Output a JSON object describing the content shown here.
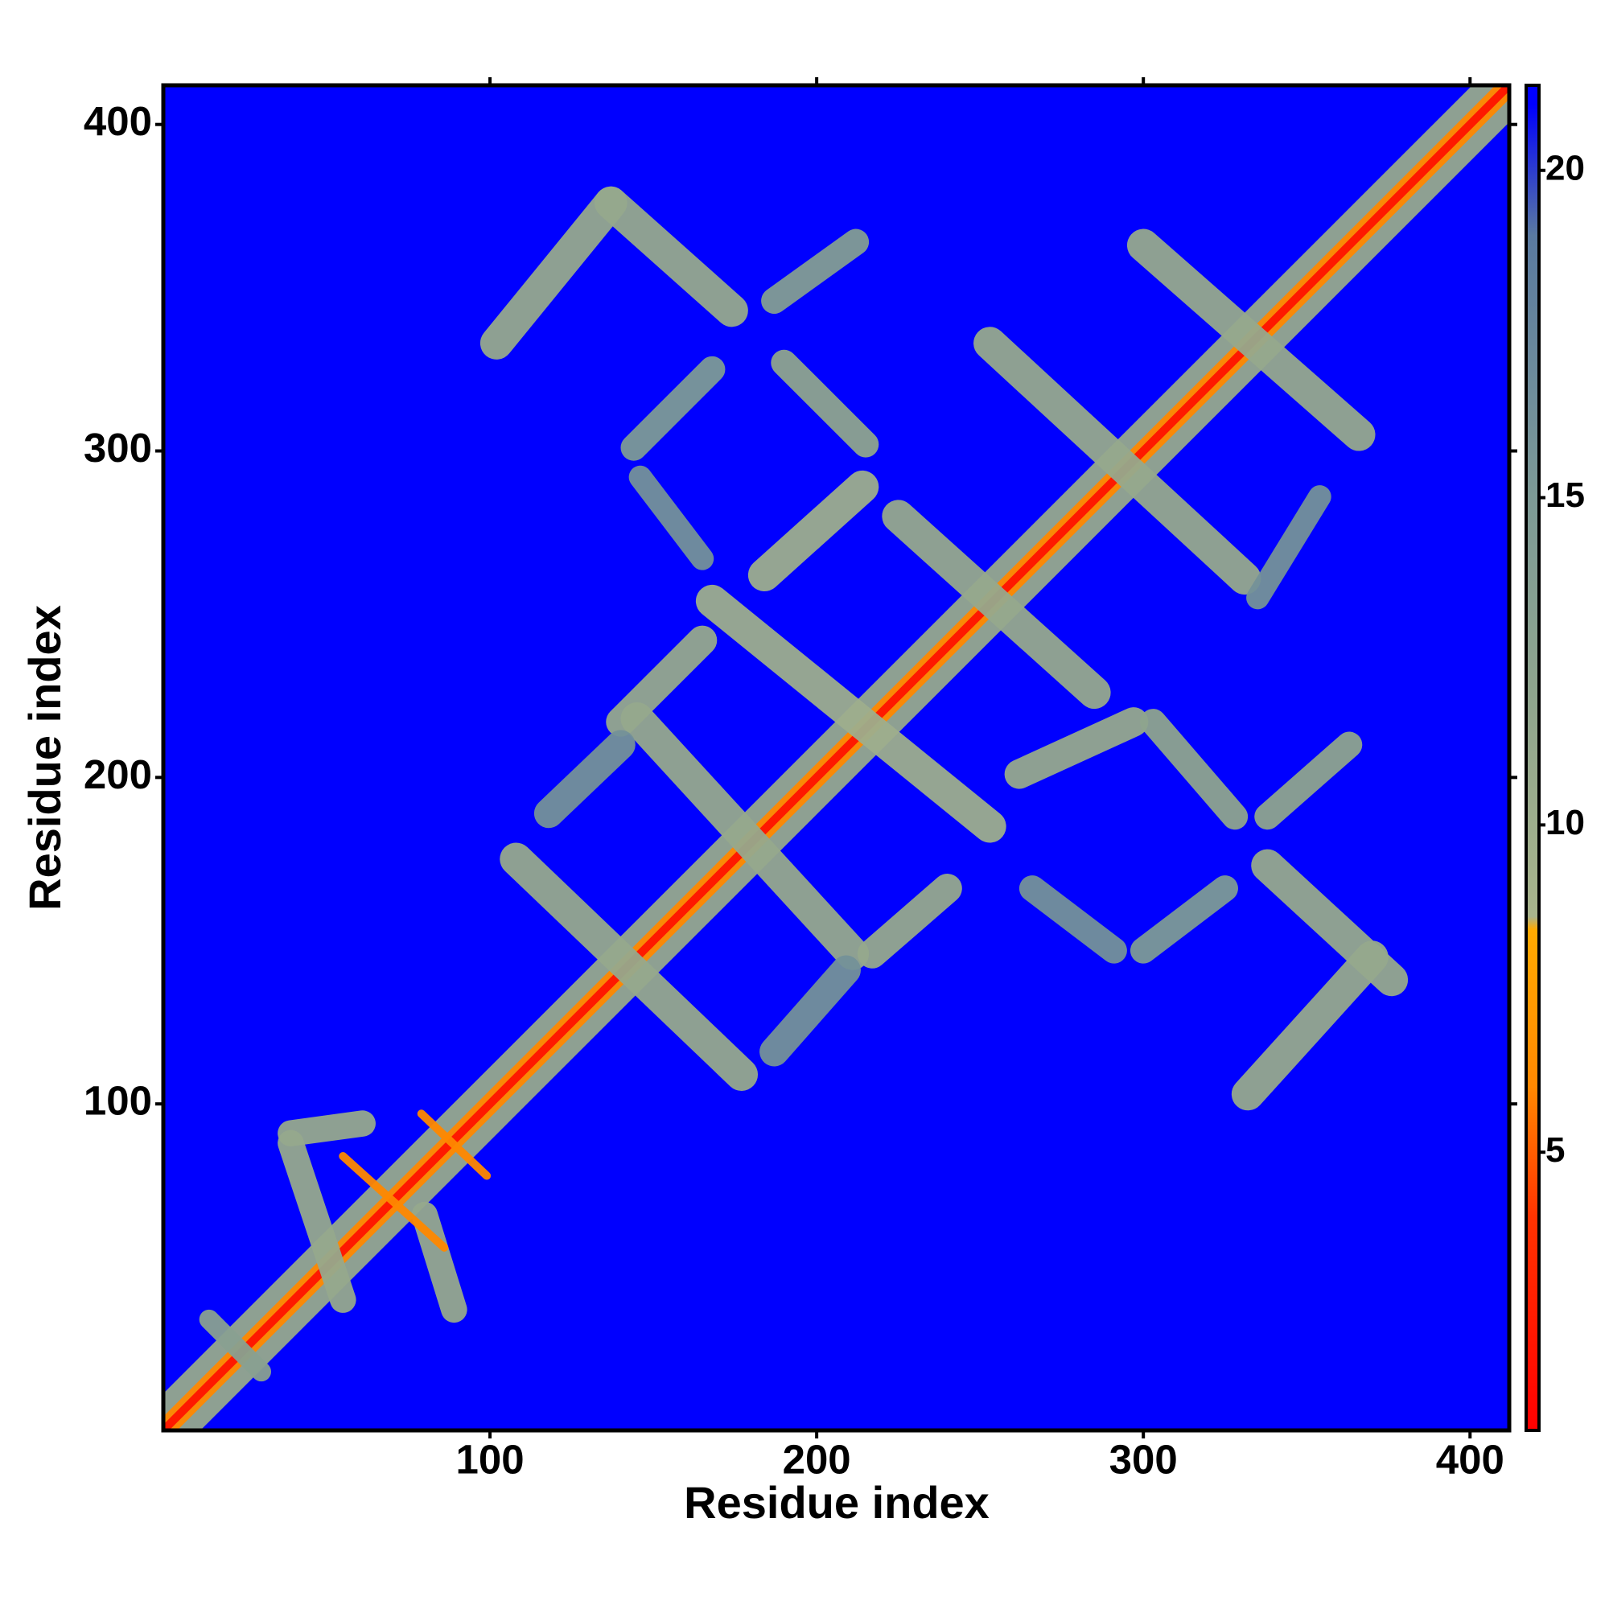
{
  "chart_data": {
    "type": "heatmap",
    "xlabel": "Residue index",
    "ylabel": "Residue index",
    "xlim": [
      0,
      412
    ],
    "ylim": [
      0,
      412
    ],
    "xticks": [
      100,
      200,
      300,
      400
    ],
    "yticks": [
      100,
      200,
      300,
      400
    ],
    "background": 21,
    "colorbar": {
      "lim": [
        0.75,
        21.3
      ],
      "ticks": [
        5,
        10,
        15,
        20
      ]
    },
    "colorscale": [
      {
        "value": 0.75,
        "color": "#ff0000"
      },
      {
        "value": 4,
        "color": "#ff3300"
      },
      {
        "value": 6,
        "color": "#ff8800"
      },
      {
        "value": 8.4,
        "color": "#ffaa00"
      },
      {
        "value": 8.6,
        "color": "#a8b48c"
      },
      {
        "value": 12,
        "color": "#8fa58e"
      },
      {
        "value": 15,
        "color": "#7d9a96"
      },
      {
        "value": 19,
        "color": "#5a7aa0"
      },
      {
        "value": 21,
        "color": "#0000ff"
      }
    ],
    "features": [
      {
        "x": [
          1,
          411
        ],
        "y": [
          1,
          411
        ],
        "value": 11,
        "width": 16
      },
      {
        "x": [
          1,
          411
        ],
        "y": [
          1,
          411
        ],
        "value": 6,
        "width": 6
      },
      {
        "x": [
          1,
          411
        ],
        "y": [
          1,
          411
        ],
        "value": 2,
        "width": 2.5
      },
      {
        "x": [
          102,
          137
        ],
        "y": [
          333,
          376
        ],
        "value": 11,
        "width": 10
      },
      {
        "x": [
          137,
          174
        ],
        "y": [
          376,
          343
        ],
        "value": 11,
        "width": 10
      },
      {
        "x": [
          187,
          212
        ],
        "y": [
          346,
          364
        ],
        "value": 14,
        "width": 8
      },
      {
        "x": [
          144,
          168
        ],
        "y": [
          301,
          325
        ],
        "value": 15,
        "width": 8
      },
      {
        "x": [
          190,
          215
        ],
        "y": [
          327,
          302
        ],
        "value": 12,
        "width": 8
      },
      {
        "x": [
          253,
          331
        ],
        "y": [
          333,
          261
        ],
        "value": 11,
        "width": 10
      },
      {
        "x": [
          300,
          366
        ],
        "y": [
          363,
          305
        ],
        "value": 11,
        "width": 10
      },
      {
        "x": [
          184,
          214
        ],
        "y": [
          262,
          289
        ],
        "value": 10,
        "width": 10
      },
      {
        "x": [
          225,
          285
        ],
        "y": [
          280,
          226
        ],
        "value": 11,
        "width": 10
      },
      {
        "x": [
          168,
          253
        ],
        "y": [
          254,
          185
        ],
        "value": 10,
        "width": 10
      },
      {
        "x": [
          140,
          165
        ],
        "y": [
          217,
          242
        ],
        "value": 11,
        "width": 9
      },
      {
        "x": [
          145,
          211
        ],
        "y": [
          218,
          146
        ],
        "value": 11,
        "width": 10
      },
      {
        "x": [
          108,
          177
        ],
        "y": [
          175,
          109
        ],
        "value": 11,
        "width": 10
      },
      {
        "x": [
          217,
          240
        ],
        "y": [
          146,
          166
        ],
        "value": 11,
        "width": 9
      },
      {
        "x": [
          262,
          297
        ],
        "y": [
          201,
          217
        ],
        "value": 11,
        "width": 9
      },
      {
        "x": [
          303,
          328
        ],
        "y": [
          217,
          188
        ],
        "value": 12,
        "width": 8
      },
      {
        "x": [
          338,
          363
        ],
        "y": [
          188,
          210
        ],
        "value": 12,
        "width": 8
      },
      {
        "x": [
          338,
          376
        ],
        "y": [
          173,
          138
        ],
        "value": 11,
        "width": 10
      },
      {
        "x": [
          332,
          370
        ],
        "y": [
          103,
          145
        ],
        "value": 11,
        "width": 10
      },
      {
        "x": [
          300,
          325
        ],
        "y": [
          147,
          166
        ],
        "value": 15,
        "width": 8
      },
      {
        "x": [
          266,
          291
        ],
        "y": [
          166,
          147
        ],
        "value": 16,
        "width": 8
      },
      {
        "x": [
          118,
          140
        ],
        "y": [
          189,
          210
        ],
        "value": 16,
        "width": 9
      },
      {
        "x": [
          187,
          209
        ],
        "y": [
          116,
          141
        ],
        "value": 16,
        "width": 9
      },
      {
        "x": [
          335,
          354
        ],
        "y": [
          255,
          286
        ],
        "value": 16,
        "width": 7
      },
      {
        "x": [
          146,
          165
        ],
        "y": [
          292,
          267
        ],
        "value": 16,
        "width": 7
      },
      {
        "x": [
          39,
          55
        ],
        "y": [
          88,
          40
        ],
        "value": 11,
        "width": 8
      },
      {
        "x": [
          80,
          89
        ],
        "y": [
          66,
          37
        ],
        "value": 11,
        "width": 8
      },
      {
        "x": [
          39,
          61
        ],
        "y": [
          91,
          94
        ],
        "value": 11,
        "width": 8
      },
      {
        "x": [
          55,
          86
        ],
        "y": [
          84,
          56
        ],
        "value": 6,
        "width": 2.5
      },
      {
        "x": [
          79,
          99
        ],
        "y": [
          97,
          78
        ],
        "value": 6,
        "width": 2.5
      },
      {
        "x": [
          14,
          30
        ],
        "y": [
          34,
          18
        ],
        "value": 13,
        "width": 6
      }
    ]
  }
}
